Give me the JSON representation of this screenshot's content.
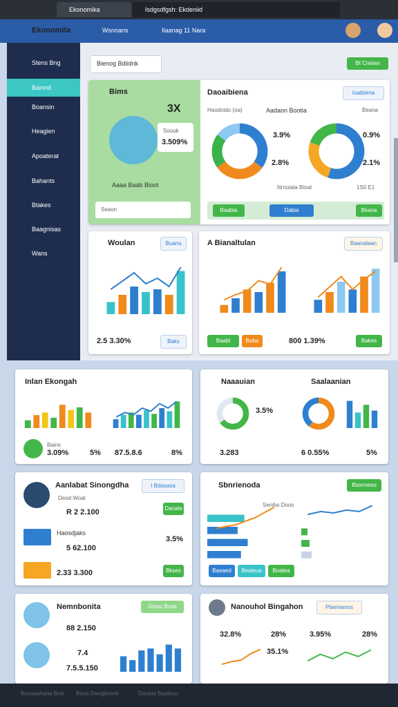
{
  "browser": {
    "tabs": [
      "Ekonomika",
      "Isdgsdfgsh: Ekdeniid"
    ]
  },
  "header": {
    "title": "Ekonomita",
    "nav": [
      "Wsnnans",
      "Ilaanag 11 Nara"
    ]
  },
  "sidebar": {
    "items": [
      "Stens Bng",
      "Bainnd",
      "Boansin",
      "Heagien",
      "Apoaterat",
      "Bahants",
      "Btakes",
      "Baagnisas",
      "Wans"
    ]
  },
  "toolbar": {
    "dropdown": "Bienog Bdiidnk",
    "button": "Bt Cneian"
  },
  "panels": [
    {
      "texts": [
        "Bims",
        "3X",
        "Soouk",
        "3.509%",
        "Aaaa Baab Bioot",
        "Seaon",
        "Daoaibiena",
        "Ioaibiena",
        "Haodnido (oa)",
        "Aadaon Bootia",
        "Beana",
        "3.9%",
        "2.8%",
        "0.9%",
        "2.1%",
        "Nrnoiala Bioat",
        "1S0 E1",
        "Baabia",
        "Dabia",
        "Bkana"
      ],
      "charts": [
        {
          "type": "donut",
          "values": [
            35,
            30,
            20,
            15
          ],
          "colors": [
            "#2f7fd0",
            "#f08a1c",
            "#3bb34a",
            "#8cc8f0"
          ]
        },
        {
          "type": "donut",
          "values": [
            55,
            25,
            20
          ],
          "colors": [
            "#2f7fd0",
            "#f5a623",
            "#43b649"
          ]
        }
      ]
    },
    {
      "texts": [
        "Woulan",
        "Buanu",
        "2.5 3.30%",
        "Baks"
      ],
      "charts": [
        {
          "type": "bar",
          "values": [
            22,
            35,
            50,
            40,
            45,
            35,
            78
          ],
          "colors": [
            "#39c2c9",
            "#f08a1c",
            "#2f7fd0",
            "#39c2c9",
            "#2f7fd0",
            "#f08a1c",
            "#39c2c9"
          ],
          "ylim": [
            0,
            100
          ]
        },
        {
          "type": "line",
          "values": [
            45,
            60,
            75,
            55,
            65,
            50,
            85
          ],
          "color": "#2f7fd0",
          "ylim": [
            0,
            100
          ]
        }
      ]
    },
    {
      "texts": [
        "A Bianaltulan",
        "Baanalaan",
        "Baabl",
        "Baba",
        "800 1.39%",
        "Bakes"
      ],
      "charts": [
        {
          "type": "bar",
          "values": [
            15,
            28,
            45,
            40,
            58,
            80
          ],
          "colors": [
            "#f08a1c",
            "#2f7fd0"
          ],
          "ylim": [
            0,
            100
          ]
        },
        {
          "type": "line",
          "values": [
            25,
            35,
            42,
            62,
            55,
            88
          ],
          "color": "#f08a1c",
          "ylim": [
            0,
            100
          ]
        },
        {
          "type": "bar",
          "values": [
            25,
            40,
            60,
            45,
            70,
            85
          ],
          "colors": [
            "#2f7fd0",
            "#f08a1c",
            "#8cc8f0"
          ],
          "ylim": [
            0,
            100
          ]
        },
        {
          "type": "line",
          "values": [
            30,
            50,
            70,
            45,
            65,
            80
          ],
          "color": "#f08a1c",
          "ylim": [
            0,
            100
          ]
        }
      ]
    },
    {
      "texts": [
        "Inlan Ekongah",
        "Bains",
        "3.09%",
        "5%",
        "87.5.8.6",
        "8%"
      ],
      "charts": [
        {
          "type": "bar",
          "values": [
            15,
            25,
            30,
            20,
            45,
            35,
            40,
            30
          ],
          "colors": [
            "#43b649",
            "#f08a1c",
            "#f5c518"
          ],
          "ylim": [
            0,
            60
          ]
        },
        {
          "type": "bar",
          "values": [
            20,
            30,
            35,
            30,
            40,
            32,
            45,
            38,
            60
          ],
          "colors": [
            "#2f7fd0",
            "#39c2c9",
            "#43b649"
          ],
          "ylim": [
            0,
            70
          ]
        },
        {
          "type": "line",
          "values": [
            25,
            35,
            30,
            45,
            38,
            55,
            45,
            60
          ],
          "color": "#2f7fd0",
          "ylim": [
            0,
            70
          ]
        }
      ]
    },
    {
      "texts": [
        "Naaauian",
        "Saalaanian",
        "3.5%",
        "3.283",
        "6 0.55%",
        "5%"
      ],
      "charts": [
        {
          "type": "donut",
          "values": [
            65,
            35
          ],
          "colors": [
            "#43b649",
            "#dfe7ef"
          ]
        },
        {
          "type": "donut",
          "values": [
            60,
            40
          ],
          "colors": [
            "#f08a1c",
            "#2f7fd0"
          ]
        },
        {
          "type": "bar",
          "values": [
            70,
            40,
            60,
            45
          ],
          "colors": [
            "#2f7fd0",
            "#39c2c9",
            "#43b649",
            "#2f7fd0"
          ],
          "ylim": [
            0,
            80
          ]
        }
      ]
    },
    {
      "texts": [
        "Aanlabat Sinongdha",
        "I Bdasasa",
        "Deod Woat",
        "R 2 2.100",
        "Haosdjaks",
        "5 62.100",
        "3.5%",
        "2.33 3.300",
        "Dacate",
        "Bkses"
      ]
    },
    {
      "texts": [
        "Sbnrienoda",
        "Bsonneso",
        "Senibs Doos",
        "Baeaed",
        "Bealeua",
        "Boatea"
      ],
      "charts": [
        {
          "type": "hbar",
          "values": [
            55,
            45,
            60,
            50
          ],
          "colors": [
            "#39c2c9",
            "#2f7fd0",
            "#2f7fd0",
            "#2f7fd0"
          ],
          "xlim": [
            0,
            80
          ]
        },
        {
          "type": "line",
          "values": [
            10,
            20,
            40,
            70
          ],
          "color": "#f08a1c",
          "ylim": [
            0,
            80
          ]
        },
        {
          "type": "line",
          "values": [
            30,
            40,
            35,
            45,
            40,
            60
          ],
          "color": "#2f7fd0",
          "ylim": [
            0,
            70
          ]
        },
        {
          "type": "hbar",
          "values": [
            15,
            20,
            25
          ],
          "colors": [
            "#43b649",
            "#43b649",
            "#c7d3ea"
          ],
          "xlim": [
            0,
            100
          ]
        }
      ]
    },
    {
      "texts": [
        "Nemnbonita",
        "Gioso Bnas",
        "88 2.150",
        "7.4",
        "7.5.5.150"
      ],
      "charts": [
        {
          "type": "bar",
          "values": [
            40,
            30,
            55,
            60,
            45,
            70,
            60
          ],
          "colors": [
            "#2f7fd0"
          ],
          "ylim": [
            0,
            80
          ]
        }
      ]
    },
    {
      "texts": [
        "Nanouhol Bingahon",
        "Plaemanos",
        "32.8%",
        "28%",
        "3.95%",
        "28%",
        "35.1%"
      ],
      "charts": [
        {
          "type": "line",
          "values": [
            10,
            15,
            18,
            30,
            38
          ],
          "color": "#f08a1c",
          "ylim": [
            0,
            45
          ]
        },
        {
          "type": "line",
          "values": [
            20,
            35,
            25,
            40,
            30,
            45
          ],
          "color": "#43b649",
          "ylim": [
            0,
            55
          ]
        }
      ]
    }
  ],
  "footer": {
    "items": [
      "Bnoaaahaoa Bnik",
      "Bnoa Daogbnonk",
      "Danaat Baaleuu"
    ]
  }
}
